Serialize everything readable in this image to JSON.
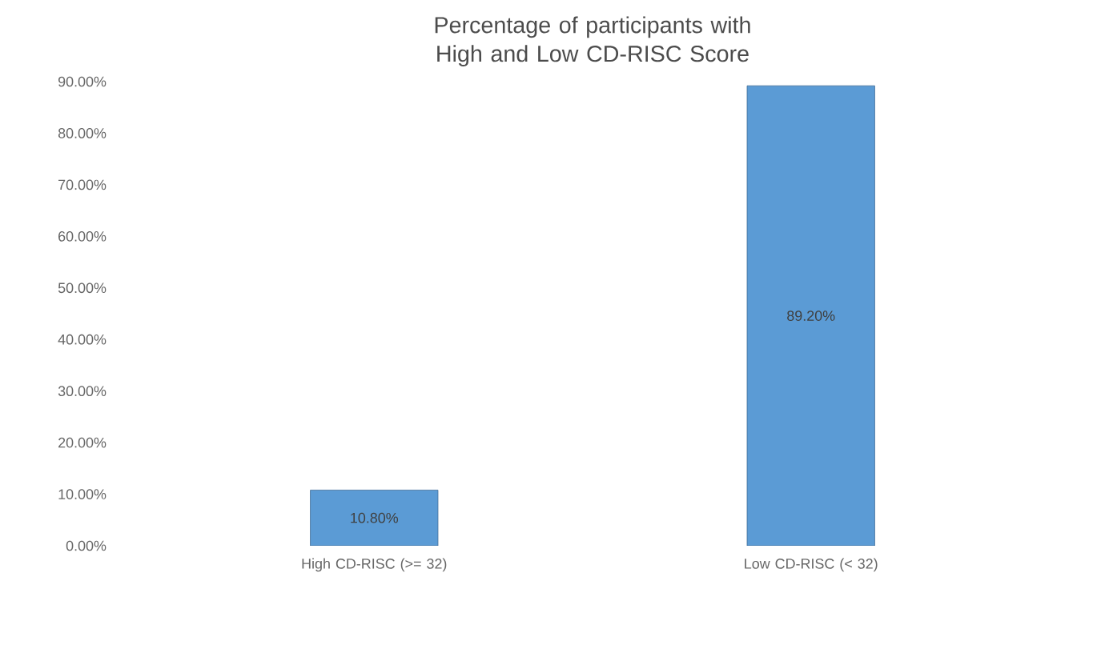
{
  "chart_data": {
    "type": "bar",
    "title": "Percentage of participants with High and Low CD-RISC Score",
    "categories": [
      "High CD-RISC (>= 32)",
      "Low CD-RISC (< 32)"
    ],
    "values": [
      10.8,
      89.2
    ],
    "value_labels": [
      "10.80%",
      "89.20%"
    ],
    "color": "#5b9bd5",
    "ylim": [
      0,
      90
    ],
    "yticks": [
      {
        "value": 0,
        "label": "0.00%"
      },
      {
        "value": 10,
        "label": "10.00%"
      },
      {
        "value": 20,
        "label": "20.00%"
      },
      {
        "value": 30,
        "label": "30.00%"
      },
      {
        "value": 40,
        "label": "40.00%"
      },
      {
        "value": 50,
        "label": "50.00%"
      },
      {
        "value": 60,
        "label": "60.00%"
      },
      {
        "value": 70,
        "label": "70.00%"
      },
      {
        "value": 80,
        "label": "80.00%"
      },
      {
        "value": 90,
        "label": "90.00%"
      }
    ],
    "grid": false
  }
}
